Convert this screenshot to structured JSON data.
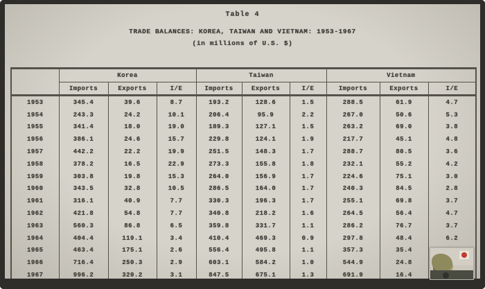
{
  "document": {
    "table_label": "Table 4",
    "title": "TRADE BALANCES:  KOREA, TAIWAN AND VIETNAM:  1953-1967",
    "subtitle": "(in millions of U.S. $)"
  },
  "table": {
    "groups": [
      {
        "label": "Korea"
      },
      {
        "label": "Taiwan"
      },
      {
        "label": "Vietnam"
      }
    ],
    "sub_headers": [
      "Imports",
      "Exports",
      "I/E"
    ],
    "rows": [
      {
        "year": "1953",
        "korea": [
          "345.4",
          "39.6",
          "8.7"
        ],
        "taiwan": [
          "193.2",
          "128.6",
          "1.5"
        ],
        "vietnam": [
          "288.5",
          "61.9",
          "4.7"
        ]
      },
      {
        "year": "1954",
        "korea": [
          "243.3",
          "24.2",
          "10.1"
        ],
        "taiwan": [
          "206.4",
          "95.9",
          "2.2"
        ],
        "vietnam": [
          "267.0",
          "50.6",
          "5.3"
        ]
      },
      {
        "year": "1955",
        "korea": [
          "341.4",
          "18.0",
          "19.0"
        ],
        "taiwan": [
          "189.3",
          "127.1",
          "1.5"
        ],
        "vietnam": [
          "263.2",
          "69.0",
          "3.8"
        ]
      },
      {
        "year": "1956",
        "korea": [
          "386.1",
          "24.6",
          "15.7"
        ],
        "taiwan": [
          "229.8",
          "124.1",
          "1.9"
        ],
        "vietnam": [
          "217.7",
          "45.1",
          "4.8"
        ]
      },
      {
        "year": "1957",
        "korea": [
          "442.2",
          "22.2",
          "19.9"
        ],
        "taiwan": [
          "251.5",
          "148.3",
          "1.7"
        ],
        "vietnam": [
          "288.7",
          "80.5",
          "3.6"
        ]
      },
      {
        "year": "1958",
        "korea": [
          "378.2",
          "16.5",
          "22.9"
        ],
        "taiwan": [
          "273.3",
          "155.8",
          "1.8"
        ],
        "vietnam": [
          "232.1",
          "55.2",
          "4.2"
        ]
      },
      {
        "year": "1959",
        "korea": [
          "303.8",
          "19.8",
          "15.3"
        ],
        "taiwan": [
          "264.0",
          "156.9",
          "1.7"
        ],
        "vietnam": [
          "224.6",
          "75.1",
          "3.0"
        ]
      },
      {
        "year": "1960",
        "korea": [
          "343.5",
          "32.8",
          "10.5"
        ],
        "taiwan": [
          "286.5",
          "164.0",
          "1.7"
        ],
        "vietnam": [
          "240.3",
          "84.5",
          "2.8"
        ]
      },
      {
        "year": "1961",
        "korea": [
          "316.1",
          "40.9",
          "7.7"
        ],
        "taiwan": [
          "330.3",
          "196.3",
          "1.7"
        ],
        "vietnam": [
          "255.1",
          "69.8",
          "3.7"
        ]
      },
      {
        "year": "1962",
        "korea": [
          "421.8",
          "54.8",
          "7.7"
        ],
        "taiwan": [
          "340.8",
          "218.2",
          "1.6"
        ],
        "vietnam": [
          "264.5",
          "56.4",
          "4.7"
        ]
      },
      {
        "year": "1963",
        "korea": [
          "560.3",
          "86.8",
          "6.5"
        ],
        "taiwan": [
          "359.8",
          "331.7",
          "1.1"
        ],
        "vietnam": [
          "286.2",
          "76.7",
          "3.7"
        ]
      },
      {
        "year": "1964",
        "korea": [
          "404.4",
          "119.1",
          "3.4"
        ],
        "taiwan": [
          "410.4",
          "469.3",
          "0.9"
        ],
        "vietnam": [
          "297.8",
          "48.4",
          "6.2"
        ]
      },
      {
        "year": "1965",
        "korea": [
          "463.4",
          "175.1",
          "2.6"
        ],
        "taiwan": [
          "556.4",
          "495.8",
          "1.1"
        ],
        "vietnam": [
          "357.3",
          "35.4",
          "10.1"
        ]
      },
      {
        "year": "1966",
        "korea": [
          "716.4",
          "250.3",
          "2.9"
        ],
        "taiwan": [
          "603.1",
          "584.2",
          "1.0"
        ],
        "vietnam": [
          "544.9",
          "24.8",
          ""
        ]
      },
      {
        "year": "1967",
        "korea": [
          "996.2",
          "320.2",
          "3.1"
        ],
        "taiwan": [
          "847.5",
          "675.1",
          "1.3"
        ],
        "vietnam": [
          "691.9",
          "16.4",
          ""
        ]
      }
    ]
  },
  "overlay": {
    "photo_thumbnail": "photo-thumbnail"
  },
  "colors": {
    "page_background": "#d6d3ca",
    "frame": "#2e2d2a",
    "text": "#3c3a35",
    "rule_lines": "#54524b"
  }
}
